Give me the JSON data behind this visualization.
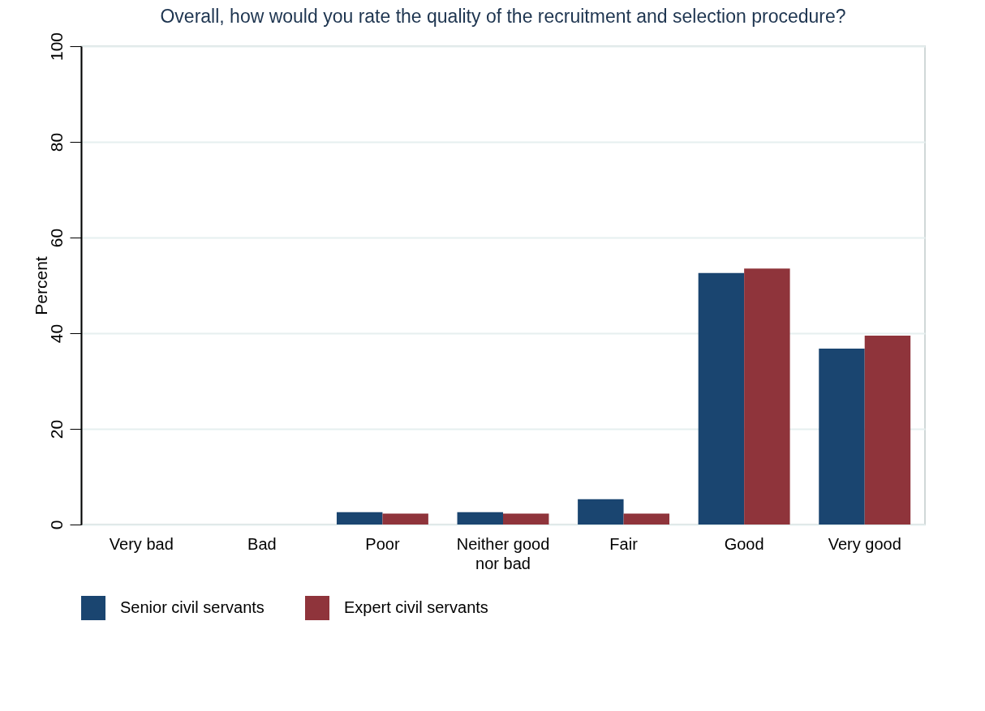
{
  "chart_data": {
    "type": "bar",
    "title": "Overall, how would you rate the quality of the recruitment and selection procedure?",
    "ylabel": "Percent",
    "categories": [
      "Very bad",
      "Bad",
      "Poor",
      "Neither good nor bad",
      "Fair",
      "Good",
      "Very good"
    ],
    "series": [
      {
        "name": "Senior civil servants",
        "color": "#1a4570",
        "values": [
          0,
          0,
          2.6,
          2.6,
          5.3,
          52.6,
          36.8
        ]
      },
      {
        "name": "Expert civil servants",
        "color": "#8f343b",
        "values": [
          0,
          0,
          2.3,
          2.3,
          2.3,
          53.5,
          39.5
        ]
      }
    ],
    "ylim": [
      0,
      100
    ],
    "yticks": [
      0,
      20,
      40,
      60,
      80,
      100
    ],
    "grid": "y",
    "legend": "bottom"
  }
}
